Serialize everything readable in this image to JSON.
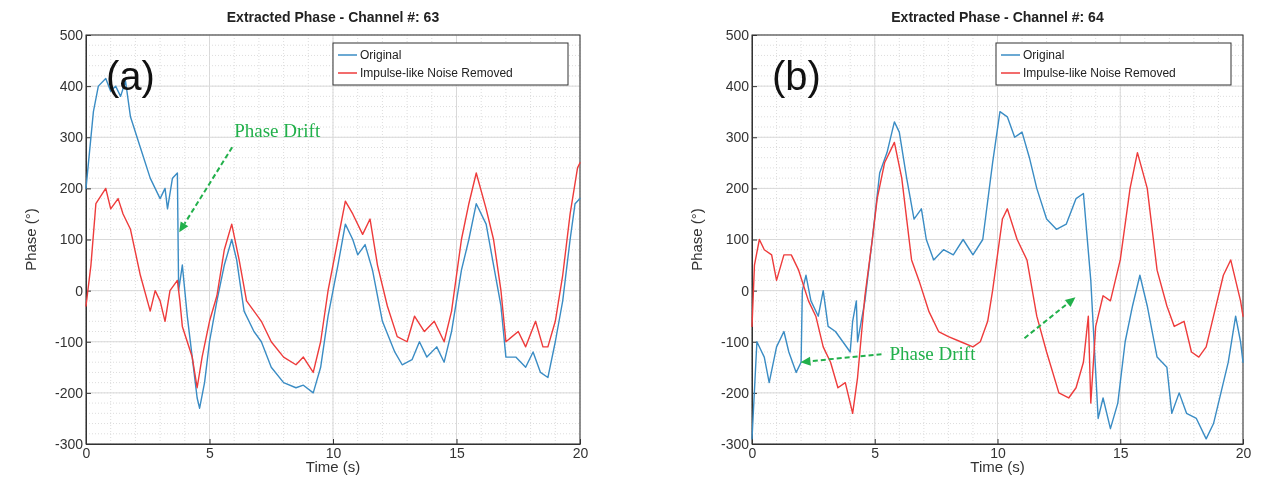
{
  "chart_data": [
    {
      "type": "line",
      "title": "Extracted Phase - Channel #: 63",
      "xlabel": "Time (s)",
      "ylabel": "Phase (°)",
      "annotations": [
        "(a)",
        "Phase Drift"
      ],
      "xlim": [
        0,
        20
      ],
      "ylim": [
        -300,
        500
      ],
      "xticks": [
        0,
        5,
        10,
        15,
        20
      ],
      "yticks": [
        -300,
        -200,
        -100,
        0,
        100,
        200,
        300,
        400,
        500
      ],
      "grid": true,
      "legend": "top right",
      "series": [
        {
          "name": "Original",
          "color": "#3a8cc4",
          "x": [
            0,
            0.3,
            0.5,
            0.8,
            1.0,
            1.2,
            1.4,
            1.6,
            1.8,
            2.2,
            2.6,
            2.8,
            3.0,
            3.2,
            3.3,
            3.5,
            3.7,
            3.75,
            3.9,
            4.1,
            4.3,
            4.5,
            4.6,
            4.8,
            5.0,
            5.3,
            5.6,
            5.9,
            6.1,
            6.4,
            6.8,
            7.1,
            7.5,
            8.0,
            8.5,
            8.8,
            9.2,
            9.5,
            9.8,
            10.2,
            10.5,
            10.8,
            11.0,
            11.3,
            11.6,
            12.0,
            12.5,
            12.8,
            13.2,
            13.5,
            13.8,
            14.2,
            14.5,
            14.8,
            15.2,
            15.5,
            15.8,
            16.2,
            16.5,
            16.8,
            17.0,
            17.4,
            17.8,
            18.1,
            18.4,
            18.7,
            19.0,
            19.3,
            19.6,
            19.8,
            20
          ],
          "values": [
            200,
            350,
            400,
            415,
            390,
            400,
            380,
            410,
            340,
            280,
            220,
            200,
            180,
            200,
            160,
            220,
            230,
            0,
            50,
            -50,
            -130,
            -210,
            -230,
            -180,
            -100,
            -20,
            50,
            100,
            60,
            -40,
            -80,
            -100,
            -150,
            -180,
            -190,
            -185,
            -200,
            -150,
            -50,
            50,
            130,
            100,
            70,
            90,
            40,
            -60,
            -120,
            -145,
            -135,
            -100,
            -130,
            -110,
            -140,
            -80,
            40,
            100,
            170,
            130,
            50,
            -30,
            -130,
            -130,
            -150,
            -120,
            -160,
            -170,
            -100,
            -20,
            100,
            170,
            180
          ]
        },
        {
          "name": "Impulse-like Noise Removed",
          "color": "#ee3b3b",
          "x": [
            0,
            0.2,
            0.4,
            0.8,
            1.0,
            1.3,
            1.5,
            1.8,
            2.2,
            2.6,
            2.8,
            3.0,
            3.2,
            3.4,
            3.7,
            3.8,
            3.9,
            4.1,
            4.3,
            4.5,
            4.7,
            5.0,
            5.3,
            5.6,
            5.9,
            6.2,
            6.5,
            6.8,
            7.1,
            7.5,
            8.0,
            8.5,
            8.8,
            9.2,
            9.5,
            9.8,
            10.2,
            10.5,
            10.8,
            11.2,
            11.5,
            11.8,
            12.2,
            12.6,
            13.0,
            13.3,
            13.7,
            14.1,
            14.5,
            14.8,
            15.2,
            15.5,
            15.8,
            16.2,
            16.5,
            16.8,
            17.0,
            17.5,
            17.8,
            18.2,
            18.5,
            18.7,
            19.0,
            19.3,
            19.6,
            19.9,
            20
          ],
          "values": [
            -30,
            50,
            170,
            200,
            160,
            180,
            150,
            120,
            30,
            -40,
            0,
            -20,
            -60,
            0,
            20,
            -20,
            -70,
            -100,
            -130,
            -190,
            -130,
            -60,
            -10,
            80,
            130,
            60,
            -20,
            -40,
            -60,
            -100,
            -130,
            -145,
            -130,
            -160,
            -100,
            0,
            100,
            175,
            150,
            110,
            140,
            50,
            -30,
            -90,
            -100,
            -50,
            -80,
            -60,
            -100,
            -40,
            100,
            170,
            230,
            160,
            100,
            0,
            -100,
            -80,
            -110,
            -60,
            -110,
            -110,
            -60,
            30,
            150,
            240,
            250
          ]
        }
      ]
    },
    {
      "type": "line",
      "title": "Extracted Phase - Channel #: 64",
      "xlabel": "Time (s)",
      "ylabel": "Phase (°)",
      "annotations": [
        "(b)",
        "Phase Drift"
      ],
      "xlim": [
        0,
        20
      ],
      "ylim": [
        -300,
        500
      ],
      "xticks": [
        0,
        5,
        10,
        15,
        20
      ],
      "yticks": [
        -300,
        -200,
        -100,
        0,
        100,
        200,
        300,
        400,
        500
      ],
      "grid": true,
      "legend": "top right",
      "series": [
        {
          "name": "Original",
          "color": "#3a8cc4",
          "x": [
            0,
            0.2,
            0.5,
            0.7,
            1.0,
            1.3,
            1.5,
            1.8,
            2.0,
            2.05,
            2.2,
            2.4,
            2.7,
            2.9,
            3.1,
            3.4,
            3.7,
            4.0,
            4.1,
            4.25,
            4.3,
            4.6,
            4.9,
            5.2,
            5.5,
            5.8,
            6.0,
            6.3,
            6.6,
            6.9,
            7.1,
            7.4,
            7.8,
            8.2,
            8.6,
            9.0,
            9.4,
            9.8,
            10.1,
            10.4,
            10.7,
            11.0,
            11.3,
            11.6,
            12.0,
            12.4,
            12.8,
            13.2,
            13.5,
            13.8,
            14.1,
            14.3,
            14.6,
            14.9,
            15.2,
            15.5,
            15.8,
            16.1,
            16.5,
            16.9,
            17.1,
            17.4,
            17.7,
            18.1,
            18.5,
            18.8,
            19.1,
            19.4,
            19.7,
            19.9,
            20
          ],
          "values": [
            -290,
            -100,
            -130,
            -180,
            -110,
            -80,
            -120,
            -160,
            -140,
            0,
            30,
            -20,
            -50,
            0,
            -70,
            -80,
            -100,
            -120,
            -60,
            -20,
            -100,
            -20,
            100,
            230,
            270,
            330,
            310,
            220,
            140,
            160,
            100,
            60,
            80,
            70,
            100,
            70,
            100,
            250,
            350,
            340,
            300,
            310,
            260,
            200,
            140,
            120,
            130,
            180,
            190,
            20,
            -250,
            -210,
            -270,
            -220,
            -100,
            -30,
            30,
            -30,
            -130,
            -150,
            -240,
            -200,
            -240,
            -250,
            -290,
            -260,
            -200,
            -140,
            -50,
            -100,
            -140
          ]
        },
        {
          "name": "Impulse-like Noise Removed",
          "color": "#ee3b3b",
          "x": [
            0,
            0.1,
            0.3,
            0.5,
            0.8,
            1.0,
            1.3,
            1.6,
            1.9,
            2.3,
            2.6,
            2.9,
            3.2,
            3.5,
            3.8,
            4.1,
            4.3,
            4.6,
            4.9,
            5.1,
            5.4,
            5.8,
            6.1,
            6.5,
            6.8,
            7.2,
            7.6,
            8.0,
            8.5,
            9.0,
            9.3,
            9.6,
            9.8,
            10.2,
            10.4,
            10.8,
            11.2,
            11.6,
            12.0,
            12.5,
            12.9,
            13.2,
            13.5,
            13.7,
            13.8,
            14.0,
            14.3,
            14.6,
            15.0,
            15.4,
            15.7,
            16.1,
            16.5,
            16.9,
            17.2,
            17.6,
            17.9,
            18.2,
            18.5,
            18.8,
            19.2,
            19.5,
            19.9,
            20
          ],
          "values": [
            -70,
            50,
            100,
            80,
            70,
            20,
            70,
            70,
            40,
            -20,
            -50,
            -110,
            -140,
            -190,
            -180,
            -240,
            -170,
            -10,
            100,
            180,
            250,
            290,
            220,
            60,
            20,
            -40,
            -80,
            -90,
            -100,
            -110,
            -100,
            -60,
            0,
            140,
            160,
            100,
            60,
            -50,
            -120,
            -200,
            -210,
            -190,
            -140,
            -50,
            -220,
            -70,
            -10,
            -20,
            60,
            200,
            270,
            200,
            40,
            -30,
            -70,
            -60,
            -120,
            -130,
            -110,
            -50,
            30,
            60,
            -20,
            -50
          ]
        }
      ]
    }
  ]
}
